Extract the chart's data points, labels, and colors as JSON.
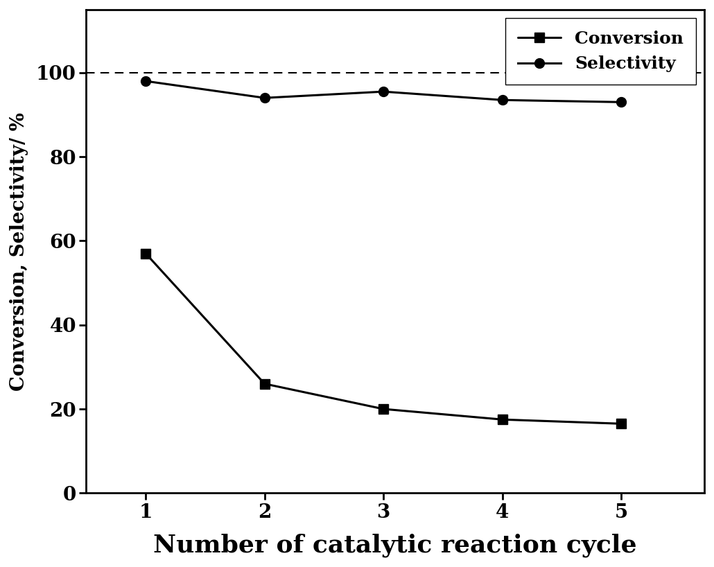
{
  "x": [
    1,
    2,
    3,
    4,
    5
  ],
  "conversion": [
    57,
    26,
    20,
    17.5,
    16.5
  ],
  "selectivity": [
    98,
    94,
    95.5,
    93.5,
    93
  ],
  "xlabel": "Number of catalytic reaction cycle",
  "ylabel": "Conversion, Selectivity/ %",
  "ylim": [
    0,
    115
  ],
  "yticks": [
    0,
    20,
    40,
    60,
    80,
    100
  ],
  "xticks": [
    1,
    2,
    3,
    4,
    5
  ],
  "xlim": [
    0.5,
    5.7
  ],
  "dashed_line_y": 100,
  "line_color": "#000000",
  "marker_conversion": "s",
  "marker_selectivity": "o",
  "markersize": 10,
  "linewidth": 2.2,
  "legend_labels": [
    "Conversion",
    "Selectivity"
  ],
  "xlabel_fontsize": 26,
  "ylabel_fontsize": 20,
  "tick_fontsize": 20,
  "legend_fontsize": 18,
  "background_color": "#ffffff",
  "figure_bg": "#ffffff"
}
